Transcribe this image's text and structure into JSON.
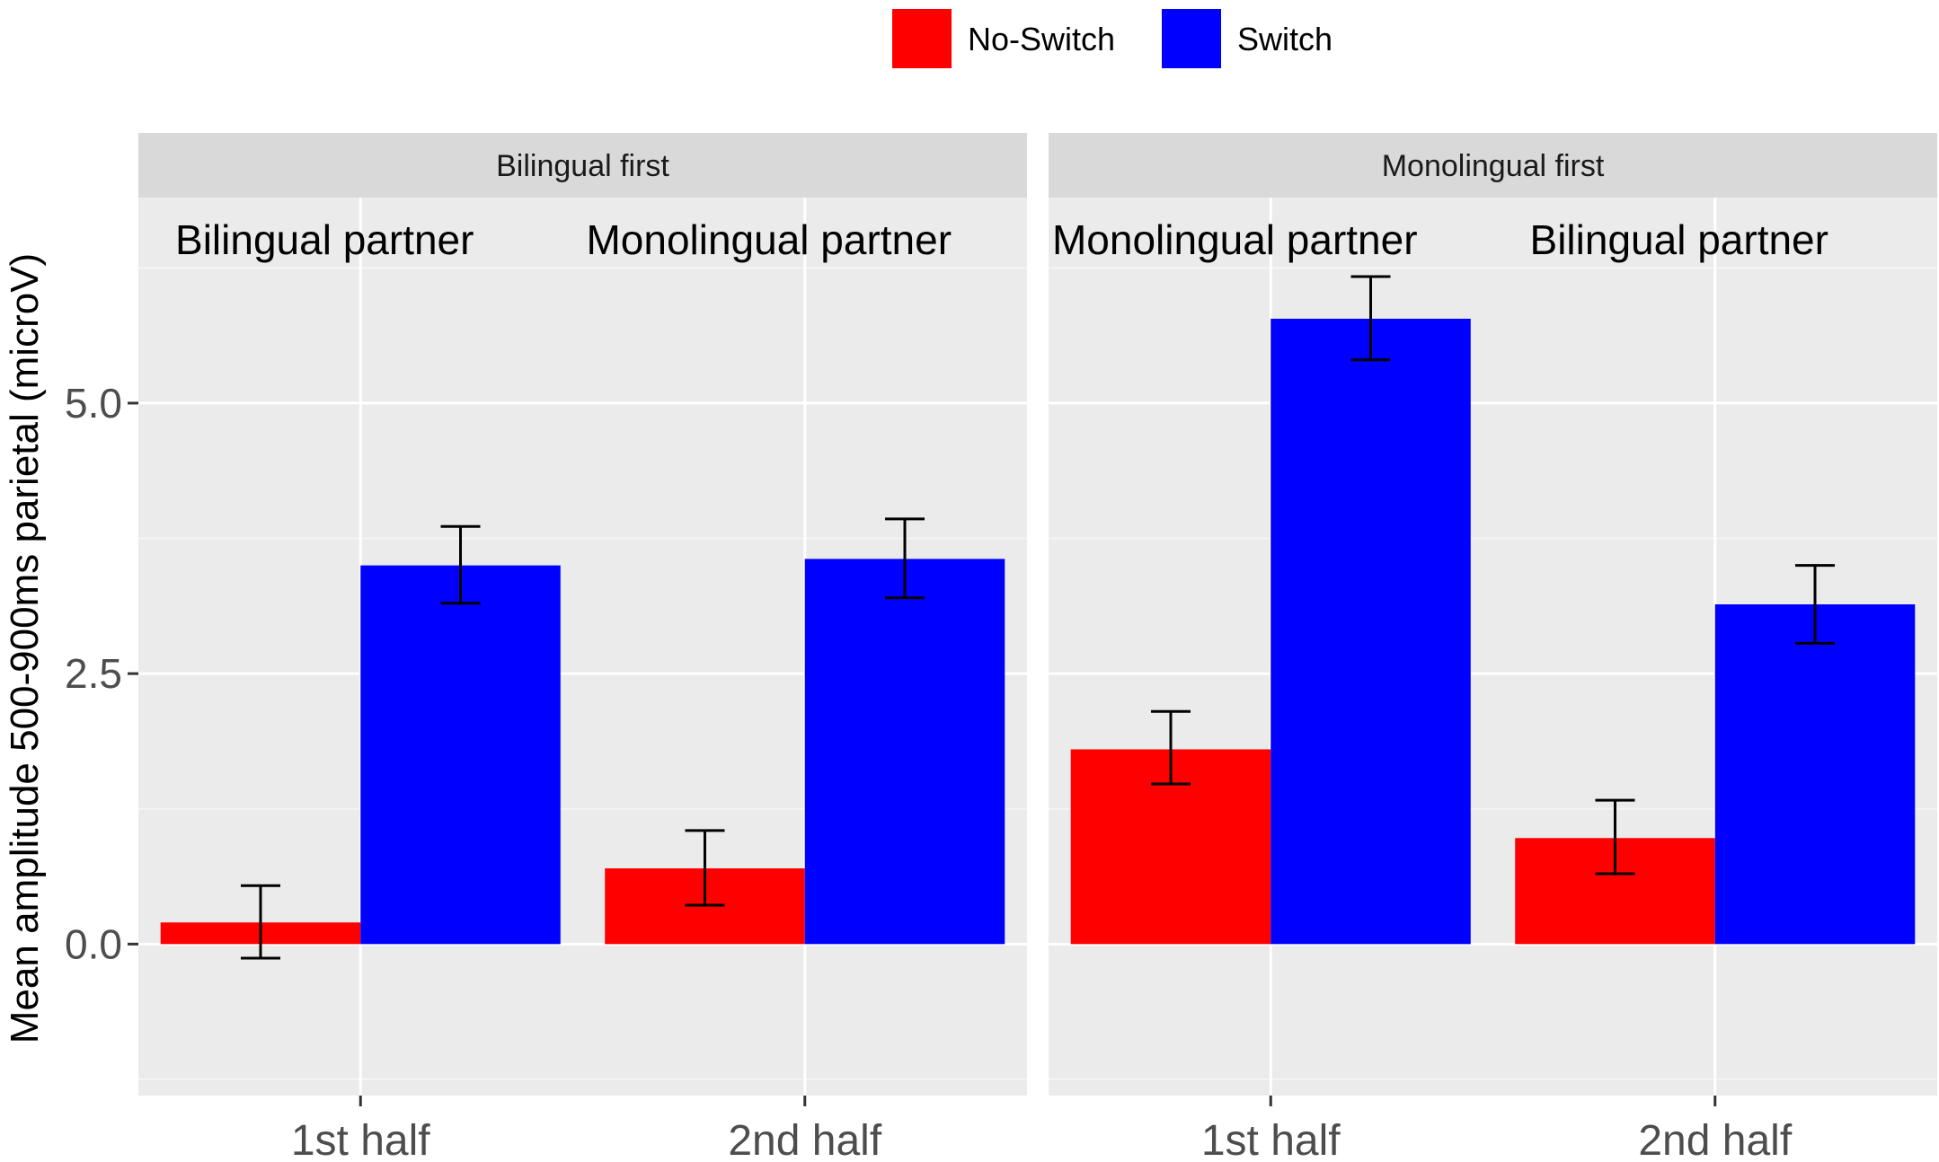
{
  "chart_data": {
    "type": "bar",
    "ylabel": "Mean amplitude 500-900ms parietal (microV)",
    "ylim": [
      -1.4,
      6.9
    ],
    "yticks": [
      0.0,
      2.5,
      5.0
    ],
    "ytick_labels": [
      "0.0",
      "2.5",
      "5.0"
    ],
    "grid": true,
    "legend": {
      "position": "top",
      "entries": [
        {
          "name": "No-Switch",
          "color": "#ff0000"
        },
        {
          "name": "Switch",
          "color": "#0000ff"
        }
      ]
    },
    "categories": [
      "1st half",
      "2nd half"
    ],
    "facets": [
      {
        "strip": "Bilingual first",
        "group_labels": [
          "Bilingual partner",
          "Monolingual partner"
        ],
        "series": [
          {
            "name": "No-Switch",
            "color": "#ff0000",
            "values": [
              0.2,
              0.7
            ],
            "err_low": [
              -0.13,
              0.36
            ],
            "err_high": [
              0.54,
              1.05
            ]
          },
          {
            "name": "Switch",
            "color": "#0000ff",
            "values": [
              3.5,
              3.56
            ],
            "err_low": [
              3.15,
              3.2
            ],
            "err_high": [
              3.86,
              3.93
            ]
          }
        ]
      },
      {
        "strip": "Monolingual first",
        "group_labels": [
          "Monolingual partner",
          "Bilingual partner"
        ],
        "series": [
          {
            "name": "No-Switch",
            "color": "#ff0000",
            "values": [
              1.8,
              0.98
            ],
            "err_low": [
              1.48,
              0.65
            ],
            "err_high": [
              2.15,
              1.33
            ]
          },
          {
            "name": "Switch",
            "color": "#0000ff",
            "values": [
              5.78,
              3.14
            ],
            "err_low": [
              5.4,
              2.78
            ],
            "err_high": [
              6.17,
              3.5
            ]
          }
        ]
      }
    ]
  }
}
